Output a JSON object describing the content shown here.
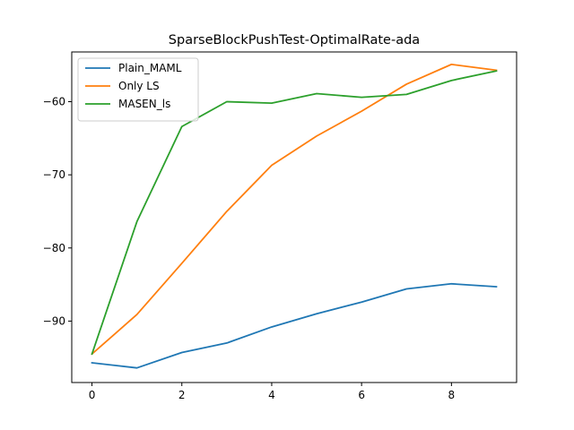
{
  "chart_data": {
    "type": "line",
    "title": "SparseBlockPushTest-OptimalRate-ada",
    "xlabel": "",
    "ylabel": "",
    "x": [
      0,
      1,
      2,
      3,
      4,
      5,
      6,
      7,
      8,
      9
    ],
    "xlim": [
      -0.45,
      9.45
    ],
    "ylim": [
      -98.4,
      -53.2
    ],
    "xticks": [
      0,
      2,
      4,
      6,
      8
    ],
    "yticks": [
      -90,
      -80,
      -70,
      -60
    ],
    "xtick_labels": [
      "0",
      "2",
      "4",
      "6",
      "8"
    ],
    "ytick_labels": [
      "−90",
      "−80",
      "−70",
      "−60"
    ],
    "grid": false,
    "legend_position": "upper-left",
    "series": [
      {
        "name": "Plain_MAML",
        "color": "#1f77b4",
        "values": [
          -95.7,
          -96.4,
          -94.3,
          -93.0,
          -90.8,
          -89.0,
          -87.4,
          -85.6,
          -84.9,
          -85.3
        ]
      },
      {
        "name": "Only LS",
        "color": "#ff7f0e",
        "values": [
          -94.5,
          -89.1,
          -82.1,
          -75.0,
          -68.7,
          -64.7,
          -61.3,
          -57.6,
          -54.9,
          -55.7
        ]
      },
      {
        "name": "MASEN_ls",
        "color": "#2ca02c",
        "values": [
          -94.5,
          -76.4,
          -63.4,
          -60.0,
          -60.2,
          -58.9,
          -59.4,
          -59.0,
          -57.1,
          -55.8
        ]
      }
    ]
  }
}
